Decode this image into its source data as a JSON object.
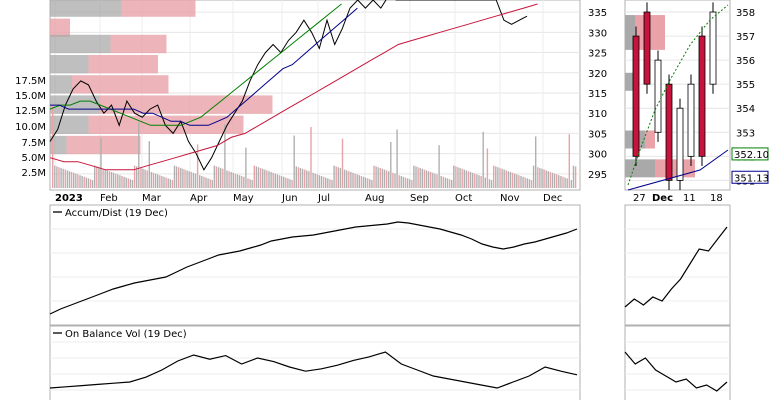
{
  "chart_data": [
    {
      "type": "line",
      "panel": "main-price",
      "title": "",
      "y_right_ticks": [
        295,
        300,
        305,
        310,
        315,
        320,
        325,
        330,
        335
      ],
      "ylim": [
        291,
        338
      ],
      "y_left_volume_ticks": [
        "17.5M",
        "15.0M",
        "12.5M",
        "10.0M",
        "7.5M",
        "5.0M",
        "2.5M"
      ],
      "volume_ylim": [
        0,
        19
      ],
      "x_labels": [
        "2023",
        "Feb",
        "Mar",
        "Apr",
        "May",
        "Jun",
        "Jul",
        "Aug",
        "Sep",
        "Oct",
        "Nov",
        "Dec"
      ],
      "series": [
        {
          "role": "price",
          "x": [
            0,
            5,
            10,
            15,
            20,
            25,
            30,
            35,
            40,
            45,
            50,
            55,
            60,
            65,
            70,
            75,
            80,
            85,
            90,
            95,
            100,
            105,
            110,
            115,
            120,
            125,
            130,
            135,
            140,
            145,
            150,
            155,
            160,
            165,
            170,
            175,
            180,
            185,
            190,
            195,
            200,
            205,
            210,
            215,
            220,
            225,
            230,
            235,
            240,
            245,
            250,
            255,
            260,
            265,
            270,
            275,
            280,
            285,
            290,
            295,
            300,
            305,
            310
          ],
          "y": [
            303,
            306,
            312,
            316,
            318,
            317,
            313,
            310,
            312,
            307,
            313,
            310,
            309,
            311,
            312,
            307,
            305,
            308,
            303,
            300,
            296,
            299,
            303,
            307,
            310,
            313,
            318,
            322,
            325,
            327,
            325,
            328,
            330,
            333,
            330,
            326,
            333,
            327,
            331,
            336,
            338,
            336,
            338,
            336,
            339,
            338,
            338,
            338,
            338,
            338,
            338,
            338,
            338,
            338,
            338,
            338,
            338,
            338,
            338,
            333,
            332,
            333,
            334
          ]
        },
        {
          "role": "ma-short",
          "color": "#008000",
          "y": [
            311,
            312,
            312,
            313,
            313,
            312,
            311,
            310,
            309,
            308,
            307,
            307,
            307,
            307,
            308,
            309,
            311,
            313,
            315,
            317,
            319,
            321,
            323,
            325,
            327,
            329,
            331,
            333,
            335,
            337
          ]
        },
        {
          "role": "ma-mid",
          "color": "#00008b",
          "y": [
            312,
            312,
            311,
            311,
            311,
            311,
            311,
            311,
            311,
            311,
            310,
            310,
            309,
            308,
            308,
            307,
            307,
            307,
            308,
            309,
            311,
            313,
            315,
            317,
            319,
            321,
            322,
            324,
            326,
            328,
            330,
            332,
            334,
            336
          ]
        },
        {
          "role": "ma-long",
          "color": "#c8143c",
          "y": [
            299,
            298,
            298,
            297,
            296,
            296,
            296,
            297,
            298,
            299,
            300,
            301,
            302,
            304,
            305,
            307,
            309,
            311,
            313,
            315,
            317,
            319,
            321,
            323,
            325,
            327,
            328,
            329,
            330,
            331,
            332,
            333,
            334,
            335,
            336,
            337
          ]
        }
      ]
    },
    {
      "type": "line",
      "panel": "accum-dist",
      "title": "Accum/Dist (19 Dec)",
      "x_labels": [],
      "series": [
        {
          "name": "Accum/Dist",
          "y": [
            5,
            10,
            14,
            18,
            22,
            26,
            30,
            33,
            36,
            38,
            40,
            42,
            47,
            52,
            56,
            60,
            64,
            66,
            68,
            71,
            74,
            78,
            80,
            82,
            83,
            84,
            86,
            88,
            90,
            92,
            93,
            94,
            95,
            97,
            96,
            94,
            92,
            90,
            87,
            84,
            80,
            75,
            72,
            70,
            72,
            75,
            77,
            80,
            83,
            86,
            90
          ]
        }
      ]
    },
    {
      "type": "line",
      "panel": "on-balance-vol",
      "title": "On Balance Vol (19 Dec)",
      "x_labels": [],
      "series": [
        {
          "name": "On Balance Vol",
          "y": [
            20,
            22,
            24,
            26,
            28,
            30,
            38,
            50,
            65,
            75,
            68,
            74,
            60,
            70,
            64,
            55,
            48,
            52,
            58,
            66,
            72,
            80,
            60,
            50,
            40,
            35,
            30,
            25,
            20,
            30,
            40,
            55,
            48,
            42
          ]
        }
      ]
    },
    {
      "type": "line",
      "panel": "zoom-price",
      "y_right_ticks": [
        351,
        352,
        353,
        354,
        355,
        356,
        357,
        358
      ],
      "ylim": [
        350.6,
        358.5
      ],
      "x_labels": [
        "27",
        "Dec",
        "11",
        "18"
      ],
      "value_badges": [
        {
          "label": "352.10",
          "color": "#008000"
        },
        {
          "label": "351.13",
          "color": "#00008b"
        }
      ]
    },
    {
      "type": "line",
      "panel": "zoom-accum-dist",
      "series": [
        {
          "name": "Accum/Dist",
          "y": [
            12,
            20,
            14,
            22,
            18,
            30,
            40,
            55,
            70,
            68,
            80,
            92
          ]
        }
      ]
    },
    {
      "type": "line",
      "panel": "zoom-on-balance-vol",
      "series": [
        {
          "name": "On Balance Vol",
          "y": [
            80,
            60,
            70,
            50,
            40,
            30,
            35,
            20,
            25,
            15,
            30
          ]
        }
      ]
    }
  ]
}
